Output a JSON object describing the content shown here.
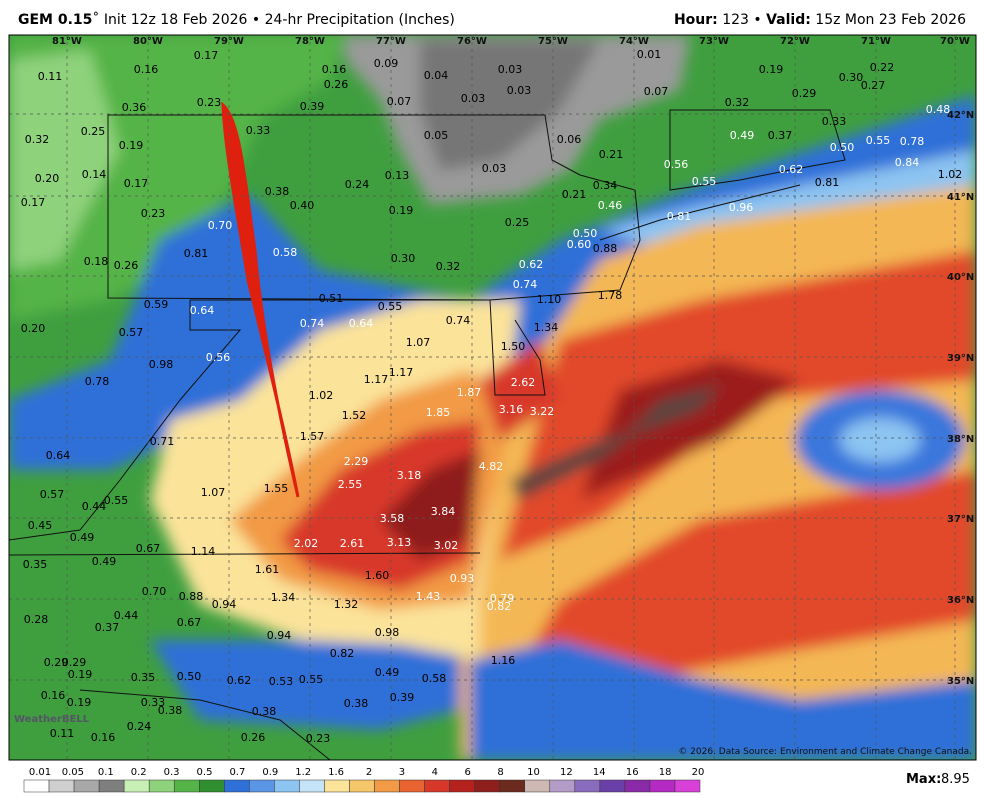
{
  "header": {
    "model": "GEM 0.15",
    "title_rest": "˚ Init 12z 18 Feb 2026 • 24-hr Precipitation (Inches)",
    "hour_label": "Hour:",
    "hour_value": "123 •",
    "valid_label": "Valid:",
    "valid_value": "15z Mon 23 Feb 2026"
  },
  "map": {
    "lon_labels": [
      "81°W",
      "80°W",
      "79°W",
      "78°W",
      "77°W",
      "76°W",
      "75°W",
      "74°W",
      "73°W",
      "72°W",
      "71°W",
      "70°W"
    ],
    "lat_labels": [
      "42°N",
      "41°N",
      "40°N",
      "39°N",
      "38°N",
      "37°N",
      "36°N",
      "35°N"
    ],
    "values": [
      "0.11",
      "0.16",
      "0.17",
      "0.16",
      "0.09",
      "0.04",
      "0.03",
      "0.03",
      "0.01",
      "0.19",
      "0.30",
      "0.22",
      "0.27",
      "0.48",
      "0.36",
      "0.23",
      "0.39",
      "0.07",
      "0.03",
      "0.07",
      "0.32",
      "0.29",
      "0.26",
      "0.33",
      "0.32",
      "0.25",
      "0.19",
      "0.05",
      "0.06",
      "0.49",
      "0.37",
      "0.33",
      "0.50",
      "0.55",
      "0.78",
      "0.84",
      "1.02",
      "0.21",
      "0.56",
      "0.62",
      "0.55",
      "0.81",
      "0.20",
      "0.14",
      "0.17",
      "0.38",
      "0.24",
      "0.13",
      "0.03",
      "0.34",
      "0.21",
      "0.46",
      "0.17",
      "0.23",
      "0.40",
      "0.19",
      "0.25",
      "0.81",
      "0.96",
      "0.70",
      "0.50",
      "0.60",
      "0.88",
      "0.18",
      "0.26",
      "0.81",
      "0.58",
      "0.30",
      "0.32",
      "0.62",
      "0.74",
      "1.10",
      "1.78",
      "0.20",
      "0.57",
      "0.59",
      "0.64",
      "0.51",
      "0.55",
      "0.74",
      "0.64",
      "0.74",
      "1.34",
      "1.07",
      "1.50",
      "0.56",
      "0.98",
      "1.17",
      "1.17",
      "2.62",
      "0.78",
      "1.02",
      "1.87",
      "1.52",
      "1.85",
      "3.16",
      "3.22",
      "0.71",
      "1.57",
      "0.64",
      "2.29",
      "4.82",
      "3.18",
      "0.57",
      "0.44",
      "0.55",
      "1.07",
      "1.55",
      "2.55",
      "3.84",
      "0.45",
      "3.58",
      "0.49",
      "0.67",
      "1.14",
      "2.02",
      "2.61",
      "3.13",
      "3.02",
      "0.35",
      "0.49",
      "1.61",
      "1.60",
      "0.93",
      "0.70",
      "0.88",
      "0.94",
      "1.34",
      "1.32",
      "1.43",
      "0.79",
      "0.82",
      "0.28",
      "0.44",
      "0.37",
      "0.67",
      "0.94",
      "0.98",
      "0.82",
      "1.16",
      "0.29",
      "0.29",
      "0.19",
      "0.35",
      "0.50",
      "0.62",
      "0.53",
      "0.55",
      "0.49",
      "0.58",
      "0.16",
      "0.33",
      "0.38",
      "0.38",
      "0.38",
      "0.39",
      "0.19",
      "0.11",
      "0.16",
      "0.24",
      "0.26",
      "0.23"
    ],
    "logo": "WeatherBELL",
    "copyright": "© 2026. Data Source: Environment and Climate Change Canada."
  },
  "legend": {
    "labels": [
      "0.01",
      "0.05",
      "0.1",
      "0.2",
      "0.3",
      "0.5",
      "0.7",
      "0.9",
      "1.2",
      "1.6",
      "2",
      "3",
      "4",
      "6",
      "8",
      "10",
      "12",
      "14",
      "16",
      "18",
      "20"
    ],
    "max_label": "Max:",
    "max_value": "8.95"
  }
}
